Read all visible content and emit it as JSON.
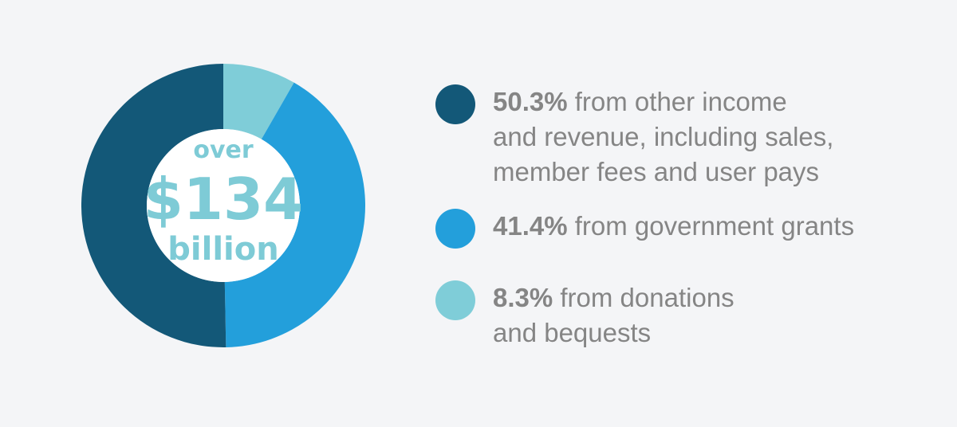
{
  "chart_data": {
    "type": "pie",
    "categories": [
      "from other income and revenue, including sales, member fees and user pays",
      "from government grants",
      "from donations and bequests"
    ],
    "values": [
      50.3,
      41.4,
      8.3
    ],
    "value_labels": [
      "50.3%",
      "41.4%",
      "8.3%"
    ],
    "colors": [
      "#135878",
      "#239fdb",
      "#7fcdd8"
    ],
    "donut": true,
    "center_label": [
      "over",
      "$134",
      "billion"
    ],
    "center_label_color": "#7ecbd6",
    "legend_placement": "right"
  },
  "legend": [
    {
      "pct": "50.3%",
      "lines": [
        "from other income",
        "and revenue, including sales,",
        "member fees and user pays"
      ]
    },
    {
      "pct": "41.4%",
      "lines": [
        "from government grants"
      ]
    },
    {
      "pct": "8.3%",
      "lines": [
        "from donations",
        "and bequests"
      ]
    }
  ]
}
